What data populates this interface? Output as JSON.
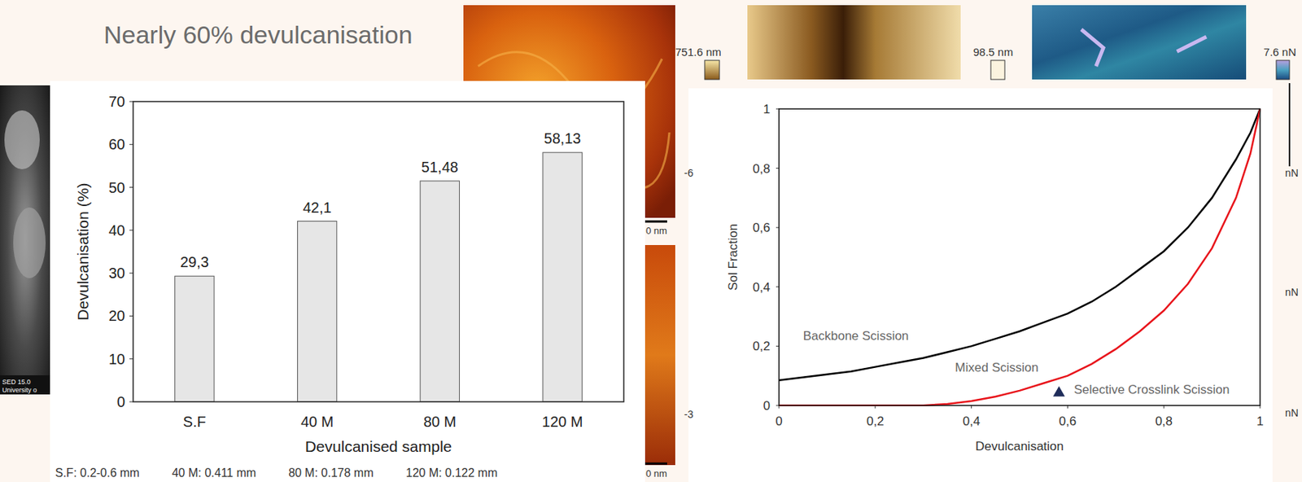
{
  "slide": {
    "title": "Nearly 60% devulcanisation",
    "image_labels": [
      "751.6 nm",
      "98.5 nm",
      "7.6 nN",
      "-6",
      "0 nm",
      "-3",
      "0 nm",
      "nN",
      "nN",
      "nN",
      "SED  15.0",
      "University o"
    ]
  },
  "chart_data": [
    {
      "type": "bar",
      "x_label": "Devulcanised sample",
      "y_label": "Devulcanisation (%)",
      "categories": [
        "S.F",
        "40 M",
        "80 M",
        "120 M"
      ],
      "values": [
        29.3,
        42.1,
        51.48,
        58.13
      ],
      "value_labels": [
        "29,3",
        "42,1",
        "51,48",
        "58,13"
      ],
      "data_labels": true,
      "color": "#e6e6e6",
      "ylim": [
        0,
        70
      ],
      "yticks": [
        0,
        10,
        20,
        30,
        40,
        50,
        60,
        70
      ],
      "grid": false,
      "footnote": [
        "S.F: 0.2-0.6 mm",
        "40 M: 0.411 mm",
        "80 M: 0.178 mm",
        "120 M: 0.122 mm"
      ]
    },
    {
      "type": "line",
      "x_label": "Devulcanisation",
      "y_label": "Sol Fraction",
      "series": [
        {
          "type": "line",
          "color": "#000000",
          "line_style": "solid",
          "x": [
            0,
            0.05,
            0.1,
            0.15,
            0.2,
            0.25,
            0.3,
            0.35,
            0.4,
            0.45,
            0.5,
            0.55,
            0.6,
            0.65,
            0.7,
            0.75,
            0.8,
            0.85,
            0.9,
            0.95,
            0.98,
            1
          ],
          "values": [
            0.085,
            0.095,
            0.105,
            0.115,
            0.13,
            0.145,
            0.16,
            0.18,
            0.2,
            0.225,
            0.25,
            0.28,
            0.31,
            0.35,
            0.4,
            0.46,
            0.52,
            0.6,
            0.7,
            0.83,
            0.92,
            1
          ]
        },
        {
          "type": "line",
          "color": "#e8141b",
          "line_style": "solid",
          "x": [
            0,
            0.05,
            0.1,
            0.15,
            0.2,
            0.25,
            0.3,
            0.35,
            0.4,
            0.45,
            0.5,
            0.55,
            0.6,
            0.65,
            0.7,
            0.75,
            0.8,
            0.85,
            0.9,
            0.95,
            0.98,
            1
          ],
          "values": [
            0,
            0,
            0,
            0,
            0,
            0,
            0,
            0.005,
            0.015,
            0.03,
            0.05,
            0.075,
            0.1,
            0.14,
            0.19,
            0.25,
            0.32,
            0.41,
            0.53,
            0.7,
            0.85,
            1
          ]
        },
        {
          "type": "scatter",
          "color": "#1f2d5a",
          "marker": "triangle",
          "x": [
            0.582
          ],
          "values": [
            0.045
          ]
        }
      ],
      "annotations": [
        {
          "text": "Backbone Scission",
          "x": 0.05,
          "y": 0.235
        },
        {
          "text": "Mixed Scission",
          "x": 0.366,
          "y": 0.13
        },
        {
          "text": "Selective Crosslink Scission",
          "x": 0.613,
          "y": 0.055
        }
      ],
      "xlim": [
        0,
        1
      ],
      "xticks": [
        0,
        {
          "value": 0.2,
          "label": "0,2"
        },
        {
          "value": 0.4,
          "label": "0,4"
        },
        {
          "value": 0.6,
          "label": "0,6"
        },
        {
          "value": 0.8,
          "label": "0,8"
        },
        1
      ],
      "ylim": [
        0,
        1
      ],
      "yticks": [
        0,
        {
          "value": 0.2,
          "label": "0,2"
        },
        {
          "value": 0.4,
          "label": "0,4"
        },
        {
          "value": 0.6,
          "label": "0,6"
        },
        {
          "value": 0.8,
          "label": "0,8"
        },
        1
      ],
      "grid": false
    }
  ]
}
